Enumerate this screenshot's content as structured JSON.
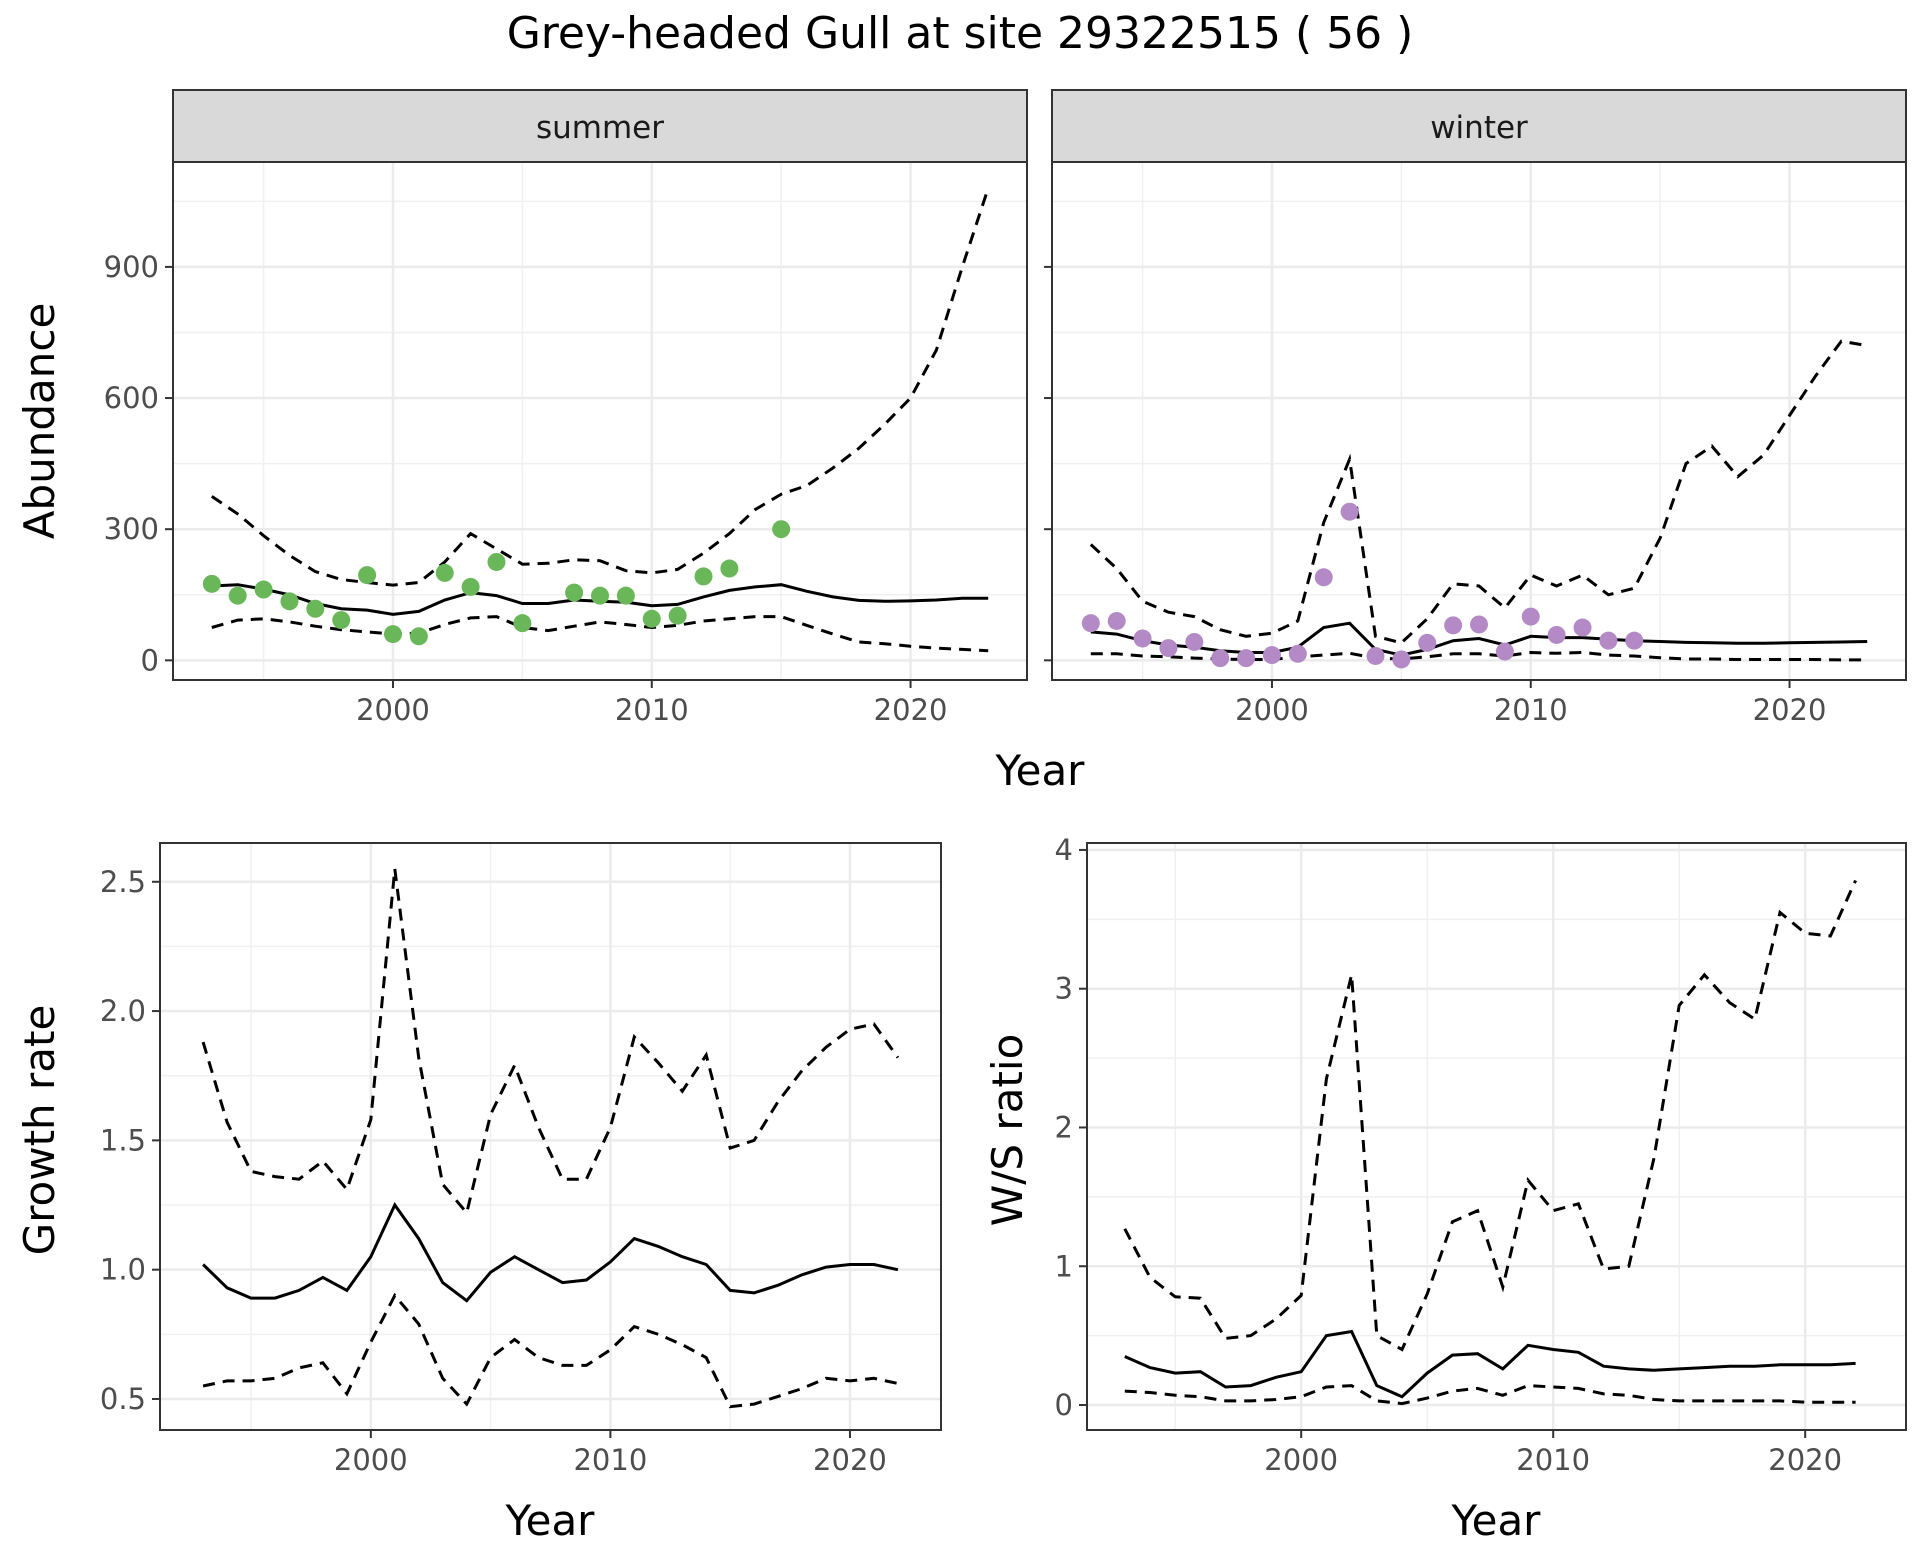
{
  "title": "Grey-headed Gull at site 29322515 ( 56 )",
  "chart_data": [
    {
      "type": "line",
      "strip": "summer",
      "xlabel": "Year",
      "ylabel": "Abundance",
      "xlim": [
        1991.5,
        2024.5
      ],
      "ylim": [
        -45,
        1140
      ],
      "xticks": [
        2000,
        2010,
        2020
      ],
      "yticks": [
        0,
        300,
        600,
        900
      ],
      "point_color": "#6ab75a",
      "x": [
        1993,
        1994,
        1995,
        1996,
        1997,
        1998,
        1999,
        2000,
        2001,
        2002,
        2003,
        2004,
        2005,
        2006,
        2007,
        2008,
        2009,
        2010,
        2011,
        2012,
        2013,
        2014,
        2015,
        2016,
        2017,
        2018,
        2019,
        2020,
        2021,
        2022,
        2023
      ],
      "estimate": [
        170,
        173,
        163,
        150,
        130,
        118,
        115,
        105,
        112,
        138,
        155,
        148,
        130,
        130,
        138,
        135,
        133,
        125,
        128,
        145,
        160,
        168,
        173,
        158,
        145,
        137,
        135,
        136,
        138,
        142,
        142
      ],
      "upper": [
        375,
        335,
        285,
        240,
        203,
        185,
        178,
        172,
        178,
        225,
        290,
        255,
        220,
        222,
        230,
        228,
        205,
        200,
        208,
        245,
        290,
        345,
        380,
        400,
        440,
        485,
        540,
        600,
        710,
        900,
        1080
      ],
      "lower": [
        75,
        92,
        95,
        88,
        78,
        70,
        65,
        60,
        62,
        82,
        97,
        100,
        75,
        68,
        78,
        88,
        82,
        75,
        80,
        90,
        95,
        100,
        100,
        80,
        60,
        42,
        38,
        32,
        28,
        25,
        22
      ],
      "points": [
        {
          "x": 1993,
          "y": 175
        },
        {
          "x": 1994,
          "y": 148
        },
        {
          "x": 1995,
          "y": 162
        },
        {
          "x": 1996,
          "y": 135
        },
        {
          "x": 1997,
          "y": 118
        },
        {
          "x": 1998,
          "y": 92
        },
        {
          "x": 1999,
          "y": 195
        },
        {
          "x": 2000,
          "y": 60
        },
        {
          "x": 2001,
          "y": 55
        },
        {
          "x": 2002,
          "y": 200
        },
        {
          "x": 2003,
          "y": 168
        },
        {
          "x": 2004,
          "y": 225
        },
        {
          "x": 2005,
          "y": 85
        },
        {
          "x": 2007,
          "y": 155
        },
        {
          "x": 2008,
          "y": 148
        },
        {
          "x": 2009,
          "y": 148
        },
        {
          "x": 2010,
          "y": 95
        },
        {
          "x": 2011,
          "y": 102
        },
        {
          "x": 2012,
          "y": 192
        },
        {
          "x": 2013,
          "y": 210
        },
        {
          "x": 2015,
          "y": 300
        }
      ]
    },
    {
      "type": "line",
      "strip": "winter",
      "xlabel": "Year",
      "ylabel": "",
      "xlim": [
        1991.5,
        2024.5
      ],
      "ylim": [
        -45,
        1140
      ],
      "xticks": [
        2000,
        2010,
        2020
      ],
      "yticks": [
        0,
        300,
        600,
        900
      ],
      "point_color": "#b48ac6",
      "x": [
        1993,
        1994,
        1995,
        1996,
        1997,
        1998,
        1999,
        2000,
        2001,
        2002,
        2003,
        2004,
        2005,
        2006,
        2007,
        2008,
        2009,
        2010,
        2011,
        2012,
        2013,
        2014,
        2015,
        2016,
        2017,
        2018,
        2019,
        2020,
        2021,
        2022,
        2023
      ],
      "estimate": [
        65,
        60,
        45,
        35,
        30,
        22,
        18,
        18,
        30,
        75,
        85,
        25,
        12,
        25,
        45,
        50,
        35,
        55,
        52,
        52,
        48,
        45,
        43,
        41,
        40,
        39,
        39,
        40,
        41,
        42,
        43
      ],
      "upper": [
        265,
        210,
        135,
        110,
        100,
        70,
        55,
        62,
        90,
        315,
        460,
        55,
        40,
        95,
        175,
        170,
        120,
        195,
        170,
        195,
        150,
        165,
        280,
        450,
        490,
        420,
        470,
        560,
        650,
        730,
        720
      ],
      "lower": [
        15,
        15,
        10,
        8,
        5,
        3,
        2,
        2,
        8,
        12,
        16,
        5,
        3,
        8,
        15,
        15,
        10,
        18,
        16,
        18,
        12,
        10,
        6,
        3,
        3,
        2,
        2,
        2,
        2,
        1,
        1
      ],
      "points": [
        {
          "x": 1993,
          "y": 85
        },
        {
          "x": 1994,
          "y": 90
        },
        {
          "x": 1995,
          "y": 50
        },
        {
          "x": 1996,
          "y": 28
        },
        {
          "x": 1997,
          "y": 42
        },
        {
          "x": 1998,
          "y": 5
        },
        {
          "x": 1999,
          "y": 5
        },
        {
          "x": 2000,
          "y": 12
        },
        {
          "x": 2001,
          "y": 15
        },
        {
          "x": 2002,
          "y": 190
        },
        {
          "x": 2003,
          "y": 340
        },
        {
          "x": 2004,
          "y": 10
        },
        {
          "x": 2005,
          "y": 2
        },
        {
          "x": 2006,
          "y": 40
        },
        {
          "x": 2007,
          "y": 80
        },
        {
          "x": 2008,
          "y": 82
        },
        {
          "x": 2009,
          "y": 20
        },
        {
          "x": 2010,
          "y": 100
        },
        {
          "x": 2011,
          "y": 58
        },
        {
          "x": 2012,
          "y": 75
        },
        {
          "x": 2013,
          "y": 45
        },
        {
          "x": 2014,
          "y": 45
        }
      ]
    },
    {
      "type": "line",
      "strip": "",
      "xlabel": "Year",
      "ylabel": "Growth rate",
      "xlim": [
        1991.2,
        2023.8
      ],
      "ylim": [
        0.38,
        2.65
      ],
      "xticks": [
        2000,
        2010,
        2020
      ],
      "yticks": [
        0.5,
        1.0,
        1.5,
        2.0,
        2.5
      ],
      "x": [
        1993,
        1994,
        1995,
        1996,
        1997,
        1998,
        1999,
        2000,
        2001,
        2002,
        2003,
        2004,
        2005,
        2006,
        2007,
        2008,
        2009,
        2010,
        2011,
        2012,
        2013,
        2014,
        2015,
        2016,
        2017,
        2018,
        2019,
        2020,
        2021,
        2022
      ],
      "estimate": [
        1.02,
        0.93,
        0.89,
        0.89,
        0.92,
        0.97,
        0.92,
        1.05,
        1.25,
        1.12,
        0.95,
        0.88,
        0.99,
        1.05,
        1.0,
        0.95,
        0.96,
        1.03,
        1.12,
        1.09,
        1.05,
        1.02,
        0.92,
        0.91,
        0.94,
        0.98,
        1.01,
        1.02,
        1.02,
        1.0
      ],
      "upper": [
        1.88,
        1.57,
        1.38,
        1.36,
        1.35,
        1.42,
        1.31,
        1.58,
        2.55,
        1.82,
        1.33,
        1.22,
        1.6,
        1.79,
        1.55,
        1.35,
        1.35,
        1.55,
        1.9,
        1.8,
        1.69,
        1.83,
        1.47,
        1.5,
        1.65,
        1.77,
        1.86,
        1.93,
        1.95,
        1.82
      ],
      "lower": [
        0.55,
        0.57,
        0.57,
        0.58,
        0.62,
        0.64,
        0.52,
        0.72,
        0.9,
        0.79,
        0.58,
        0.48,
        0.66,
        0.73,
        0.66,
        0.63,
        0.63,
        0.69,
        0.78,
        0.75,
        0.71,
        0.66,
        0.47,
        0.48,
        0.51,
        0.54,
        0.58,
        0.57,
        0.58,
        0.56
      ]
    },
    {
      "type": "line",
      "strip": "",
      "xlabel": "Year",
      "ylabel": "W/S ratio",
      "xlim": [
        1991.5,
        2024
      ],
      "ylim": [
        -0.18,
        4.05
      ],
      "xticks": [
        2000,
        2010,
        2020
      ],
      "yticks": [
        0,
        1,
        2,
        3,
        4
      ],
      "x": [
        1993,
        1994,
        1995,
        1996,
        1997,
        1998,
        1999,
        2000,
        2001,
        2002,
        2003,
        2004,
        2005,
        2006,
        2007,
        2008,
        2009,
        2010,
        2011,
        2012,
        2013,
        2014,
        2015,
        2016,
        2017,
        2018,
        2019,
        2020,
        2021,
        2022
      ],
      "estimate": [
        0.35,
        0.27,
        0.23,
        0.24,
        0.13,
        0.14,
        0.2,
        0.24,
        0.5,
        0.53,
        0.14,
        0.06,
        0.23,
        0.36,
        0.37,
        0.26,
        0.43,
        0.4,
        0.38,
        0.28,
        0.26,
        0.25,
        0.26,
        0.27,
        0.28,
        0.28,
        0.29,
        0.29,
        0.29,
        0.3
      ],
      "upper": [
        1.27,
        0.92,
        0.78,
        0.77,
        0.48,
        0.5,
        0.62,
        0.79,
        2.35,
        3.1,
        0.5,
        0.4,
        0.8,
        1.32,
        1.4,
        0.85,
        1.62,
        1.4,
        1.45,
        0.98,
        1.0,
        1.78,
        2.88,
        3.1,
        2.9,
        2.78,
        3.55,
        3.4,
        3.38,
        3.78
      ],
      "lower": [
        0.1,
        0.09,
        0.07,
        0.06,
        0.03,
        0.03,
        0.04,
        0.06,
        0.13,
        0.14,
        0.03,
        0.01,
        0.05,
        0.1,
        0.12,
        0.07,
        0.14,
        0.13,
        0.12,
        0.08,
        0.07,
        0.04,
        0.03,
        0.03,
        0.03,
        0.03,
        0.03,
        0.02,
        0.02,
        0.02
      ]
    }
  ]
}
